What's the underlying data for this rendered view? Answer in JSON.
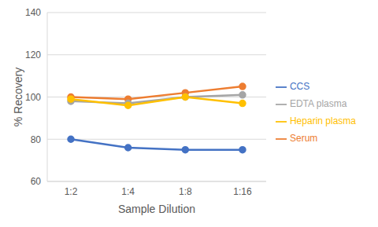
{
  "chart_data": {
    "type": "line",
    "x_label": "Sample Dilution",
    "y_label": "% Recovery",
    "categories": [
      "1:2",
      "1:4",
      "1:8",
      "1:16"
    ],
    "series": [
      {
        "name": "CCS",
        "color": "#4472c4",
        "values": [
          80,
          76,
          75,
          75
        ]
      },
      {
        "name": "Serum",
        "color": "#ed7d31",
        "values": [
          100,
          99,
          102,
          105
        ]
      },
      {
        "name": "EDTA plasma",
        "color": "#a5a5a5",
        "values": [
          98,
          97,
          100,
          101
        ]
      },
      {
        "name": "Heparin plasma",
        "color": "#ffc000",
        "values": [
          99,
          96,
          100,
          97
        ]
      }
    ],
    "ylim": [
      60,
      140
    ],
    "yticks": [
      60,
      80,
      100,
      120,
      140
    ],
    "grid": true,
    "legend": "right",
    "marker": "circle"
  }
}
